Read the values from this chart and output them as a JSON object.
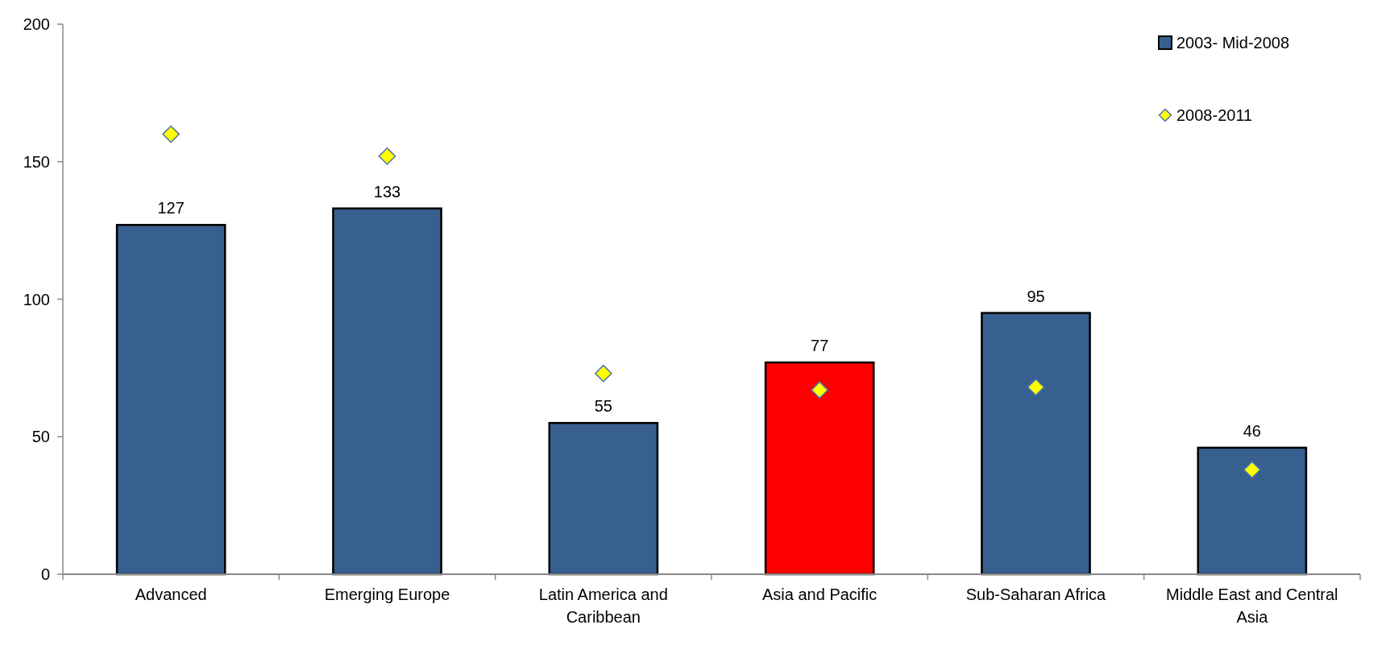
{
  "chart_data": {
    "type": "bar",
    "categories": [
      "Advanced",
      "Emerging Europe",
      "Latin America and Caribbean",
      "Asia and Pacific",
      "Sub-Saharan Africa",
      "Middle East and Central Asia"
    ],
    "series": [
      {
        "name": "2003- Mid-2008",
        "color": "#375f8f",
        "colors": [
          "#375f8f",
          "#375f8f",
          "#375f8f",
          "#ff0000",
          "#375f8f",
          "#375f8f"
        ],
        "values": [
          127,
          133,
          55,
          77,
          95,
          46
        ],
        "value_labels": [
          "127",
          "133",
          "55",
          "77",
          "95",
          "46"
        ]
      },
      {
        "name": "2008-2011",
        "type": "scatter",
        "marker": "diamond",
        "color": "#ffff00",
        "x": [
          "Advanced",
          "Emerging Europe",
          "Latin America and Caribbean",
          "Asia and Pacific",
          "Sub-Saharan Africa",
          "Middle East and Central Asia"
        ],
        "values": [
          160,
          152,
          73,
          67,
          68,
          38
        ]
      }
    ],
    "ylim": [
      0,
      200
    ],
    "yticks": [
      0,
      50,
      100,
      150,
      200
    ],
    "legend": "top right"
  }
}
